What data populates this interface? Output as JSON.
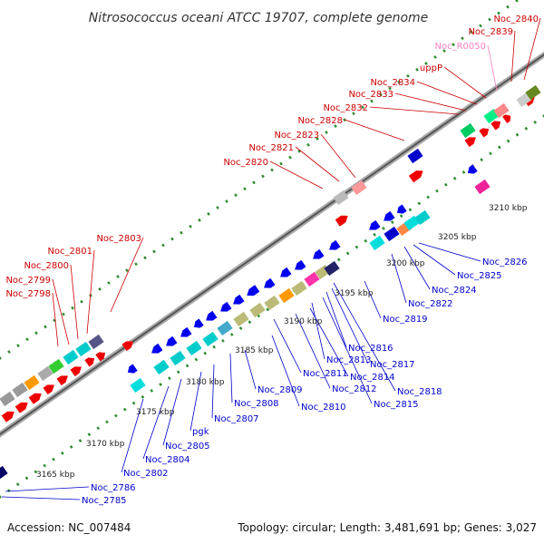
{
  "title": "Nitrosococcus oceani ATCC 19707, complete genome",
  "footer": {
    "accession": "Accession: NC_007484",
    "summary": "Topology: circular; Length: 3,481,691 bp; Genes: 3,027"
  },
  "colors": {
    "backbone": "#999999",
    "dots": "#2e8b2e",
    "forward_label": "#cc0000",
    "reverse_label": "#0000cc",
    "rna_label": "#ff80c0"
  },
  "ticks": [
    {
      "kbp": 3165,
      "label": "3165 kbp"
    },
    {
      "kbp": 3170,
      "label": "3170 kbp"
    },
    {
      "kbp": 3175,
      "label": "3175 kbp"
    },
    {
      "kbp": 3180,
      "label": "3180 kbp"
    },
    {
      "kbp": 3185,
      "label": "3185 kbp"
    },
    {
      "kbp": 3190,
      "label": "3190 kbp"
    },
    {
      "kbp": 3195,
      "label": "3195 kbp"
    },
    {
      "kbp": 3200,
      "label": "3200 kbp"
    },
    {
      "kbp": 3205,
      "label": "3205 kbp"
    },
    {
      "kbp": 3210,
      "label": "3210 kbp"
    }
  ],
  "forward_labels": [
    "Noc_2798",
    "Noc_2799",
    "Noc_2800",
    "Noc_2801",
    "Noc_2803",
    "Noc_2820",
    "Noc_2821",
    "Noc_2823",
    "Noc_2828",
    "Noc_2832",
    "Noc_2833",
    "Noc_2834",
    "uppP",
    "Noc_R0050",
    "Noc_2839",
    "Noc_2840"
  ],
  "reverse_labels": [
    "Noc_2785",
    "Noc_2786",
    "Noc_2802",
    "Noc_2804",
    "Noc_2805",
    "pgk",
    "Noc_2807",
    "Noc_2808",
    "Noc_2809",
    "Noc_2810",
    "Noc_2811",
    "Noc_2812",
    "Noc_2813",
    "Noc_2814",
    "Noc_2815",
    "Noc_2816",
    "Noc_2817",
    "Noc_2818",
    "Noc_2819",
    "Noc_2822",
    "Noc_2824",
    "Noc_2825",
    "Noc_2826"
  ]
}
